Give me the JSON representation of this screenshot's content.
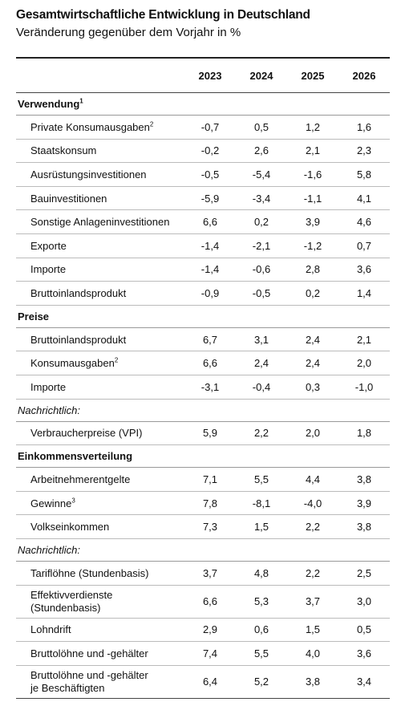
{
  "title": "Gesamtwirtschaftliche Entwicklung in Deutschland",
  "subtitle": "Veränderung gegenüber dem Vorjahr in %",
  "columns": [
    "2023",
    "2024",
    "2025",
    "2026"
  ],
  "sections": [
    {
      "label": "Verwendung",
      "sup": "1",
      "rows": [
        {
          "label": "Private Konsumausgaben",
          "sup": "2",
          "values": [
            "-0,7",
            "0,5",
            "1,2",
            "1,6"
          ]
        },
        {
          "label": "Staatskonsum",
          "values": [
            "-0,2",
            "2,6",
            "2,1",
            "2,3"
          ]
        },
        {
          "label": "Ausrüstungsinvestitionen",
          "values": [
            "-0,5",
            "-5,4",
            "-1,6",
            "5,8"
          ]
        },
        {
          "label": "Bauinvestitionen",
          "values": [
            "-5,9",
            "-3,4",
            "-1,1",
            "4,1"
          ]
        },
        {
          "label": "Sonstige Anlageninvestitionen",
          "values": [
            "6,6",
            "0,2",
            "3,9",
            "4,6"
          ]
        },
        {
          "label": "Exporte",
          "values": [
            "-1,4",
            "-2,1",
            "-1,2",
            "0,7"
          ]
        },
        {
          "label": "Importe",
          "values": [
            "-1,4",
            "-0,6",
            "2,8",
            "3,6"
          ]
        },
        {
          "label": "Bruttoinlandsprodukt",
          "values": [
            "-0,9",
            "-0,5",
            "0,2",
            "1,4"
          ]
        }
      ]
    },
    {
      "label": "Preise",
      "rows": [
        {
          "label": "Bruttoinlandsprodukt",
          "values": [
            "6,7",
            "3,1",
            "2,4",
            "2,1"
          ]
        },
        {
          "label": "Konsumausgaben",
          "sup": "2",
          "values": [
            "6,6",
            "2,4",
            "2,4",
            "2,0"
          ]
        },
        {
          "label": "Importe",
          "values": [
            "-3,1",
            "-0,4",
            "0,3",
            "-1,0"
          ]
        }
      ],
      "note": "Nachrichtlich:",
      "note_rows": [
        {
          "label": "Verbraucherpreise (VPI)",
          "values": [
            "5,9",
            "2,2",
            "2,0",
            "1,8"
          ]
        }
      ]
    },
    {
      "label": "Einkommensverteilung",
      "rows": [
        {
          "label": "Arbeitnehmerentgelte",
          "values": [
            "7,1",
            "5,5",
            "4,4",
            "3,8"
          ]
        },
        {
          "label": "Gewinne",
          "sup": "3",
          "values": [
            "7,8",
            "-8,1",
            "-4,0",
            "3,9"
          ]
        },
        {
          "label": "Volkseinkommen",
          "values": [
            "7,3",
            "1,5",
            "2,2",
            "3,8"
          ]
        }
      ],
      "note": "Nachrichtlich:",
      "note_rows": [
        {
          "label": "Tariflöhne (Stundenbasis)",
          "values": [
            "3,7",
            "4,8",
            "2,2",
            "2,5"
          ]
        },
        {
          "label": "Effektivverdienste",
          "label2": "(Stundenbasis)",
          "values": [
            "6,6",
            "5,3",
            "3,7",
            "3,0"
          ]
        },
        {
          "label": "Lohndrift",
          "values": [
            "2,9",
            "0,6",
            "1,5",
            "0,5"
          ]
        },
        {
          "label": "Bruttolöhne und -gehälter",
          "values": [
            "7,4",
            "5,5",
            "4,0",
            "3,6"
          ]
        },
        {
          "label": "Bruttolöhne und -gehälter",
          "label2": "je Beschäftigten",
          "values": [
            "6,4",
            "5,2",
            "3,8",
            "3,4"
          ]
        }
      ]
    }
  ]
}
